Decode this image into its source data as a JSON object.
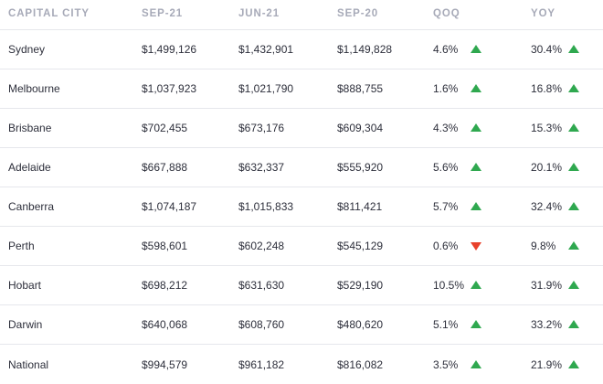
{
  "table": {
    "headers": {
      "city": "CAPITAL CITY",
      "sep21": "SEP-21",
      "jun21": "JUN-21",
      "sep20": "SEP-20",
      "qoq": "QOQ",
      "yoy": "YOY"
    },
    "rows": [
      {
        "city": "Sydney",
        "sep21": "$1,499,126",
        "jun21": "$1,432,901",
        "sep20": "$1,149,828",
        "qoq": "4.6%",
        "qoq_dir": "up",
        "yoy": "30.4%",
        "yoy_dir": "up"
      },
      {
        "city": "Melbourne",
        "sep21": "$1,037,923",
        "jun21": "$1,021,790",
        "sep20": "$888,755",
        "qoq": "1.6%",
        "qoq_dir": "up",
        "yoy": "16.8%",
        "yoy_dir": "up"
      },
      {
        "city": "Brisbane",
        "sep21": "$702,455",
        "jun21": "$673,176",
        "sep20": "$609,304",
        "qoq": "4.3%",
        "qoq_dir": "up",
        "yoy": "15.3%",
        "yoy_dir": "up"
      },
      {
        "city": "Adelaide",
        "sep21": "$667,888",
        "jun21": "$632,337",
        "sep20": "$555,920",
        "qoq": "5.6%",
        "qoq_dir": "up",
        "yoy": "20.1%",
        "yoy_dir": "up"
      },
      {
        "city": "Canberra",
        "sep21": "$1,074,187",
        "jun21": "$1,015,833",
        "sep20": "$811,421",
        "qoq": "5.7%",
        "qoq_dir": "up",
        "yoy": "32.4%",
        "yoy_dir": "up"
      },
      {
        "city": "Perth",
        "sep21": "$598,601",
        "jun21": "$602,248",
        "sep20": "$545,129",
        "qoq": "0.6%",
        "qoq_dir": "down",
        "yoy": "9.8%",
        "yoy_dir": "up"
      },
      {
        "city": "Hobart",
        "sep21": "$698,212",
        "jun21": "$631,630",
        "sep20": "$529,190",
        "qoq": "10.5%",
        "qoq_dir": "up",
        "yoy": "31.9%",
        "yoy_dir": "up"
      },
      {
        "city": "Darwin",
        "sep21": "$640,068",
        "jun21": "$608,760",
        "sep20": "$480,620",
        "qoq": "5.1%",
        "qoq_dir": "up",
        "yoy": "33.2%",
        "yoy_dir": "up"
      },
      {
        "city": "National",
        "sep21": "$994,579",
        "jun21": "$961,182",
        "sep20": "$816,082",
        "qoq": "3.5%",
        "qoq_dir": "up",
        "yoy": "21.9%",
        "yoy_dir": "up"
      }
    ]
  },
  "colors": {
    "up": "#2fa84f",
    "down": "#e8412b",
    "header_text": "#a7aab8",
    "row_divider": "#e6e7ec"
  },
  "icons": {
    "up": "triangle-up-icon",
    "down": "triangle-down-icon"
  }
}
